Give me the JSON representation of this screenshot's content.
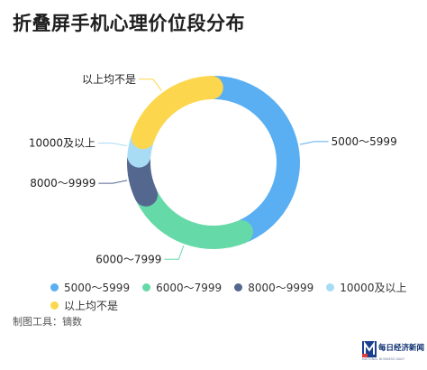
{
  "title": "折叠屏手机心理价位段分布",
  "footer": "制图工具：镝数",
  "brand": {
    "name": "每日经济新闻",
    "tagline": "NATIONAL BUSINESS DAILY"
  },
  "chart_data": {
    "type": "pie",
    "variant": "donut",
    "categories": [
      "5000～5999",
      "6000～7999",
      "8000～9999",
      "10000及以上",
      "以上均不是"
    ],
    "values": [
      43.5,
      24.0,
      8.5,
      4.0,
      20.0
    ],
    "colors": [
      "#5aaef2",
      "#66d9a8",
      "#54678f",
      "#a8dcf5",
      "#fcd74e"
    ],
    "legend_position": "bottom"
  }
}
